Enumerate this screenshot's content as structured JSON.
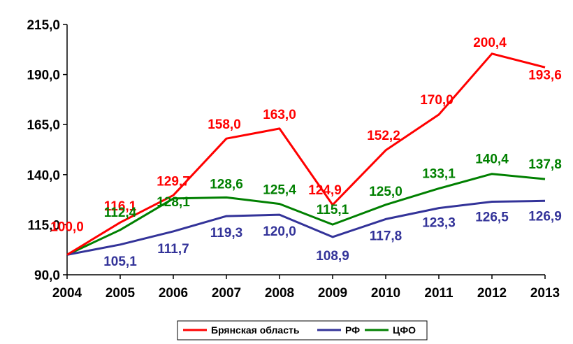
{
  "chart_data": {
    "type": "line",
    "title": "",
    "xlabel": "",
    "ylabel": "",
    "x": [
      "2004",
      "2005",
      "2006",
      "2007",
      "2008",
      "2009",
      "2010",
      "2011",
      "2012",
      "2013"
    ],
    "ylim": [
      90,
      215
    ],
    "yticks": [
      "90,0",
      "115,0",
      "140,0",
      "165,0",
      "190,0",
      "215,0"
    ],
    "ytick_values": [
      90,
      115,
      140,
      165,
      190,
      215
    ],
    "legend_position": "bottom",
    "grid": false,
    "series": [
      {
        "name": "Брянская область",
        "color": "#ff0000",
        "values": [
          100.0,
          116.1,
          129.7,
          158.0,
          163.0,
          124.9,
          152.2,
          170.0,
          200.4,
          193.6
        ],
        "labels": [
          "100,0",
          "116,1",
          "129,7",
          "158,0",
          "163,0",
          "124,9",
          "152,2",
          "170,0",
          "200,4",
          "193,6"
        ]
      },
      {
        "name": "РФ",
        "color": "#333399",
        "values": [
          100.0,
          105.1,
          111.7,
          119.3,
          120.0,
          108.9,
          117.8,
          123.3,
          126.5,
          126.9
        ],
        "labels": [
          "",
          "105,1",
          "111,7",
          "119,3",
          "120,0",
          "108,9",
          "117,8",
          "123,3",
          "126,5",
          "126,9"
        ]
      },
      {
        "name": "ЦФО",
        "color": "#008000",
        "values": [
          100.0,
          112.4,
          128.1,
          128.6,
          125.4,
          115.1,
          125.0,
          133.1,
          140.4,
          137.8
        ],
        "labels": [
          "",
          "112,4",
          "128,1",
          "128,6",
          "125,4",
          "115,1",
          "125,0",
          "133,1",
          "140,4",
          "137,8"
        ]
      }
    ]
  }
}
